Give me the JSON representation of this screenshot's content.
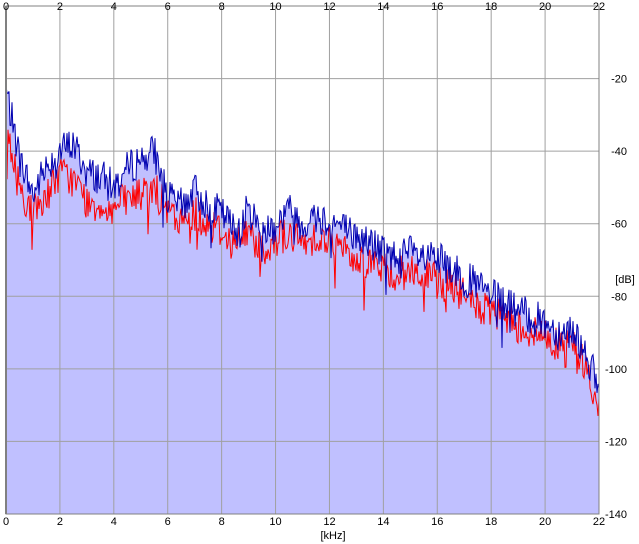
{
  "colors": {
    "background": "#ffffff",
    "plot_fill": "#c0c0ff",
    "grid": "#a0a0a0",
    "frame": "#808080",
    "channel_1": "#0000b0",
    "channel_2": "#ff0000"
  },
  "chart_data": {
    "type": "line",
    "title": "",
    "xlabel": "[kHz]",
    "ylabel": "[dB]",
    "xlim": [
      0,
      22
    ],
    "ylim": [
      -140,
      0
    ],
    "x_ticks": [
      "0",
      "2",
      "4",
      "6",
      "8",
      "10",
      "12",
      "14",
      "16",
      "18",
      "20",
      "22"
    ],
    "y_ticks": [
      "-20",
      "-40",
      "-60",
      "-80",
      "-100",
      "-120",
      "-140"
    ],
    "grid": true,
    "legend": "none",
    "x_step_khz": 0.5,
    "series": [
      {
        "color": "#0000b0",
        "x": [
          0,
          0.5,
          1,
          1.5,
          2,
          2.5,
          3,
          3.5,
          4,
          4.5,
          5,
          5.5,
          6,
          6.5,
          7,
          7.5,
          8,
          8.5,
          9,
          9.5,
          10,
          10.5,
          11,
          11.5,
          12,
          12.5,
          13,
          13.5,
          14,
          14.5,
          15,
          15.5,
          16,
          16.5,
          17,
          17.5,
          18,
          18.5,
          19,
          19.5,
          20,
          20.5,
          21,
          21.5,
          22
        ],
        "values": [
          -23,
          -42,
          -52,
          -44,
          -40,
          -38,
          -46,
          -47,
          -50,
          -45,
          -42,
          -40,
          -53,
          -55,
          -51,
          -55,
          -57,
          -62,
          -56,
          -62,
          -60,
          -56,
          -60,
          -58,
          -59,
          -61,
          -64,
          -65,
          -68,
          -69,
          -68,
          -70,
          -70,
          -72,
          -75,
          -77,
          -80,
          -82,
          -84,
          -86,
          -87,
          -90,
          -89,
          -95,
          -106
        ]
      },
      {
        "color": "#ff0000",
        "x": [
          0,
          0.5,
          1,
          1.5,
          2,
          2.5,
          3,
          3.5,
          4,
          4.5,
          5,
          5.5,
          6,
          6.5,
          7,
          7.5,
          8,
          8.5,
          9,
          9.5,
          10,
          10.5,
          11,
          11.5,
          12,
          12.5,
          13,
          13.5,
          14,
          14.5,
          15,
          15.5,
          16,
          16.5,
          17,
          17.5,
          18,
          18.5,
          19,
          19.5,
          20,
          20.5,
          21,
          21.5,
          22
        ],
        "values": [
          -35,
          -50,
          -57,
          -52,
          -46,
          -48,
          -54,
          -55,
          -56,
          -53,
          -52,
          -50,
          -57,
          -60,
          -57,
          -60,
          -62,
          -66,
          -62,
          -67,
          -64,
          -63,
          -66,
          -63,
          -65,
          -67,
          -70,
          -70,
          -73,
          -74,
          -73,
          -74,
          -76,
          -77,
          -80,
          -83,
          -85,
          -86,
          -88,
          -90,
          -91,
          -93,
          -93,
          -99,
          -113
        ]
      }
    ]
  }
}
